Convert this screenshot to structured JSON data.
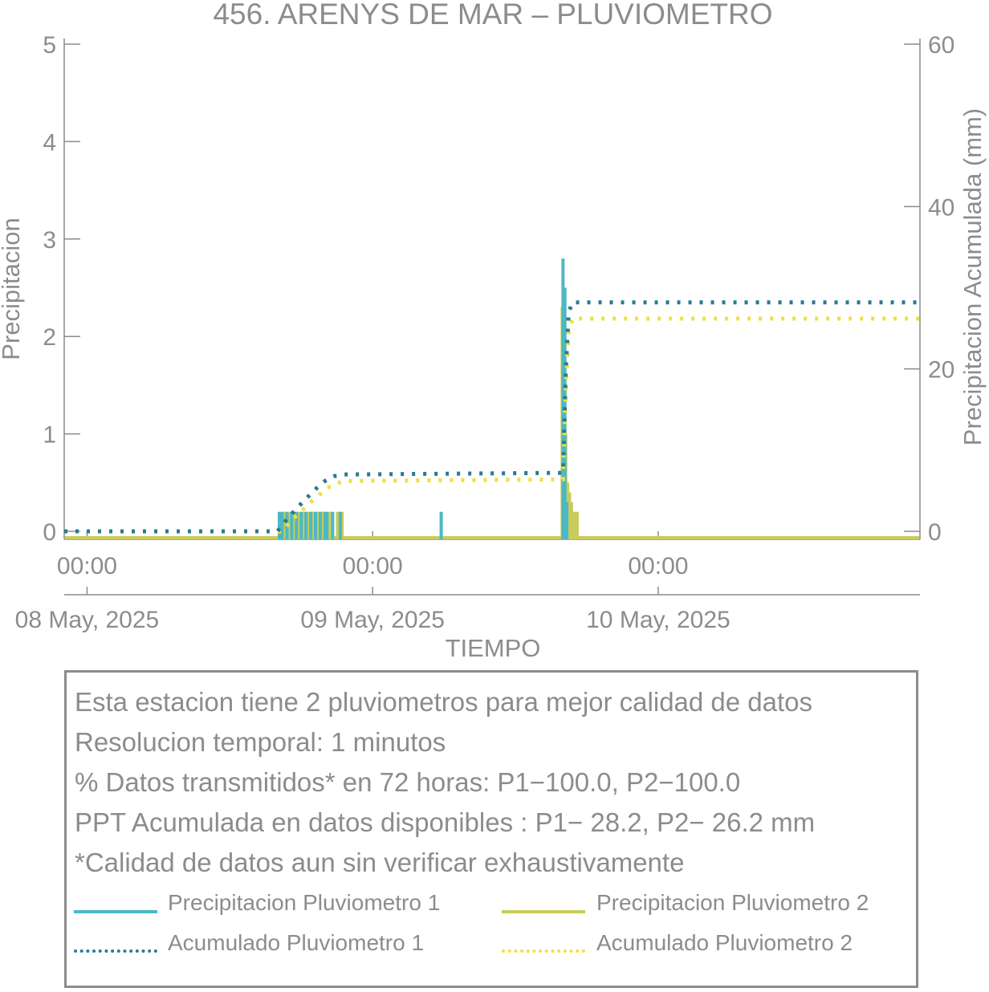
{
  "chart_data": {
    "type": "line",
    "title": "456. ARENYS DE MAR – PLUVIOMETRO",
    "xlabel": "TIEMPO",
    "ylabel_left": "Precipitacion",
    "ylabel_right": "Precipitacion Acumulada (mm)",
    "ylim_left": [
      0,
      5
    ],
    "ylim_right": [
      0,
      60
    ],
    "yticks_left": [
      "0",
      "1",
      "2",
      "3",
      "4",
      "5"
    ],
    "yticks_right": [
      "0",
      "20",
      "40",
      "60"
    ],
    "xlim_hours": [
      -2.4,
      87.5
    ],
    "xticks": [
      {
        "hour": 0,
        "time": "00:00",
        "date": "08 May, 2025"
      },
      {
        "hour": 30,
        "time": "00:00",
        "date": "09 May, 2025"
      },
      {
        "hour": 60,
        "time": "00:00",
        "date": "10 May, 2025"
      }
    ],
    "grid": false,
    "colors": {
      "p1": "#4db8c4",
      "p2": "#c8cc5a",
      "acc1": "#2a7a90",
      "acc2": "#f0e040",
      "axis": "#8c8c8c"
    },
    "series": [
      {
        "name": "Precipitacion Pluviometro 1",
        "style": "bars",
        "axis": "left",
        "x_hours": [
          20.2,
          20.5,
          21.0,
          21.5,
          22.0,
          22.5,
          23.0,
          23.5,
          24.0,
          24.5,
          25.0,
          25.2,
          25.8,
          26.6,
          37.2,
          50.0,
          50.2,
          50.4
        ],
        "values": [
          0.2,
          0.2,
          0.2,
          0.2,
          0.2,
          0.2,
          0.2,
          0.2,
          0.2,
          0.2,
          0.2,
          0.2,
          0.2,
          0.2,
          0.2,
          2.8,
          2.5,
          0.3
        ]
      },
      {
        "name": "Precipitacion Pluviometro 2",
        "style": "bars",
        "axis": "left",
        "x_hours": [
          20.8,
          21.3,
          21.8,
          22.3,
          22.8,
          23.3,
          23.8,
          24.3,
          24.8,
          25.5,
          26.4,
          26.7,
          50.0,
          50.2,
          50.4,
          50.6,
          50.8,
          51.1,
          51.4
        ],
        "values": [
          0.2,
          0.2,
          0.2,
          0.2,
          0.2,
          0.2,
          0.2,
          0.2,
          0.2,
          0.2,
          0.2,
          0.2,
          2.3,
          1.0,
          0.5,
          0.4,
          0.3,
          0.2,
          0.2
        ]
      },
      {
        "name": "Acumulado Pluviometro 1",
        "style": "dotted",
        "axis": "right",
        "x_hours": [
          -2.4,
          20.0,
          21.0,
          22.0,
          23.0,
          24.0,
          25.0,
          26.0,
          27.0,
          50.0,
          50.3,
          50.6,
          51.0,
          87.5
        ],
        "values": [
          0,
          0,
          1.5,
          2.8,
          4.0,
          5.2,
          6.2,
          6.8,
          7.0,
          7.2,
          20.0,
          27.0,
          28.2,
          28.2
        ]
      },
      {
        "name": "Acumulado Pluviometro 2",
        "style": "dotted",
        "axis": "right",
        "x_hours": [
          -2.4,
          20.5,
          21.5,
          22.5,
          23.5,
          24.5,
          25.5,
          26.5,
          27.0,
          50.0,
          50.3,
          50.6,
          51.0,
          87.5
        ],
        "values": [
          0,
          0,
          1.4,
          2.5,
          3.6,
          4.6,
          5.5,
          6.0,
          6.2,
          6.4,
          18.0,
          24.5,
          26.2,
          26.2
        ]
      }
    ]
  },
  "info": {
    "line1": "Esta estacion tiene 2 pluviometros para mejor calidad de datos",
    "line2": "Resolucion temporal: 1 minutos",
    "line3": "% Datos transmitidos* en 72 horas: P1−100.0, P2−100.0",
    "line4": "PPT Acumulada en datos disponibles : P1− 28.2, P2− 26.2 mm",
    "line5": "*Calidad de datos aun sin verificar exhaustivamente"
  },
  "legend": {
    "p1": "Precipitacion Pluviometro 1",
    "p2": "Precipitacion Pluviometro 2",
    "acc1": "Acumulado Pluviometro 1",
    "acc2": "Acumulado Pluviometro 2"
  }
}
